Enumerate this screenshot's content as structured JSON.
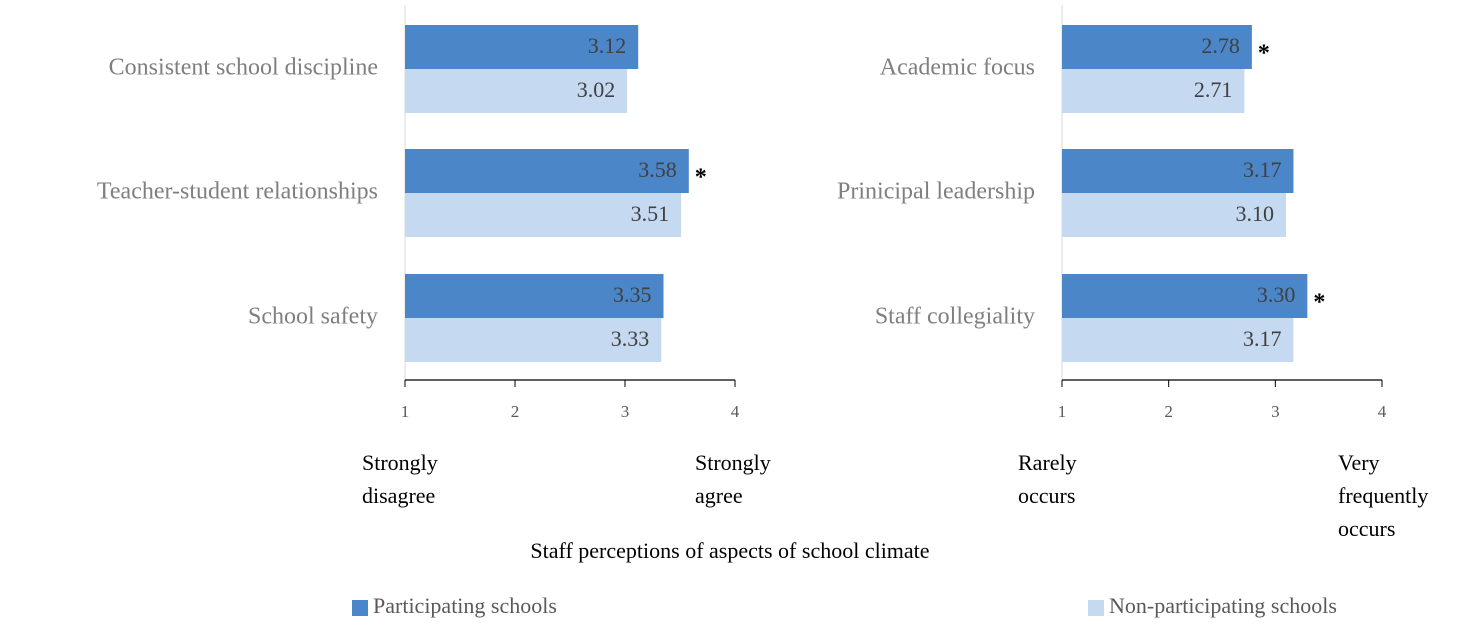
{
  "chart_data": [
    {
      "type": "bar",
      "categories": [
        "Consistent school discipline",
        "Teacher-student relationships",
        "School safety"
      ],
      "series": [
        {
          "name": "Participating schools",
          "color": "#4a86c8",
          "values": [
            3.12,
            3.58,
            3.35
          ],
          "notes": [
            null,
            "*",
            null
          ]
        },
        {
          "name": "Non-participating schools",
          "color": "#c5d9f1",
          "values": [
            3.02,
            3.51,
            3.33
          ]
        }
      ],
      "xlim": [
        1,
        4
      ],
      "xticks": [
        1,
        2,
        3,
        4
      ],
      "annotations": [
        [
          "Strongly",
          "disagree"
        ],
        [
          "Strongly",
          "agree"
        ]
      ],
      "xlabel": "Staff perceptions of aspects of school climate"
    },
    {
      "type": "bar",
      "categories": [
        "Academic focus",
        "Prinicipal leadership",
        "Staff collegiality"
      ],
      "series": [
        {
          "name": "Participating schools",
          "color": "#4a86c8",
          "values": [
            2.78,
            3.17,
            3.3
          ],
          "value_labels": [
            "2.78",
            "3.17",
            "3.30"
          ],
          "notes": [
            "*",
            null,
            "*"
          ]
        },
        {
          "name": "Non-participating schools",
          "color": "#c5d9f1",
          "values": [
            2.71,
            3.1,
            3.17
          ],
          "value_labels": [
            "2.71",
            "3.10",
            "3.17"
          ]
        }
      ],
      "xlim": [
        1,
        4
      ],
      "xticks": [
        1,
        2,
        3,
        4
      ],
      "annotations": [
        [
          "Rarely",
          "occurs"
        ],
        [
          "Very",
          "frequently",
          "occurs"
        ]
      ]
    }
  ]
}
